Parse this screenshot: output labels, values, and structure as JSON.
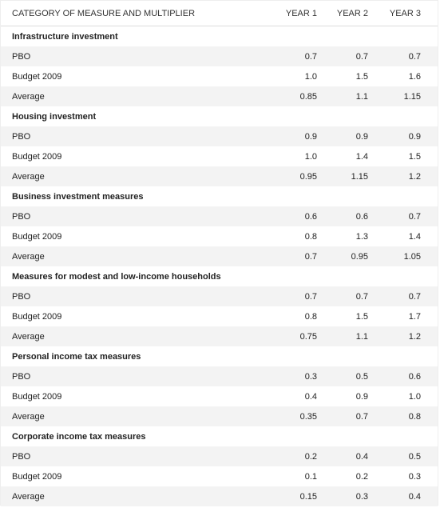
{
  "header": [
    "CATEGORY OF MEASURE AND MULTIPLIER",
    "YEAR 1",
    "YEAR 2",
    "YEAR 3"
  ],
  "groups": [
    {
      "title": "Infrastructure investment",
      "rows": [
        [
          "PBO",
          "0.7",
          "0.7",
          "0.7"
        ],
        [
          "Budget 2009",
          "1.0",
          "1.5",
          "1.6"
        ],
        [
          "Average",
          "0.85",
          "1.1",
          "1.15"
        ]
      ]
    },
    {
      "title": "Housing investment",
      "rows": [
        [
          "PBO",
          "0.9",
          "0.9",
          "0.9"
        ],
        [
          "Budget 2009",
          "1.0",
          "1.4",
          "1.5"
        ],
        [
          "Average",
          "0.95",
          "1.15",
          "1.2"
        ]
      ]
    },
    {
      "title": "Business investment measures",
      "rows": [
        [
          "PBO",
          "0.6",
          "0.6",
          "0.7"
        ],
        [
          "Budget 2009",
          "0.8",
          "1.3",
          "1.4"
        ],
        [
          "Average",
          "0.7",
          "0.95",
          "1.05"
        ]
      ]
    },
    {
      "title": "Measures for modest and low-income households",
      "rows": [
        [
          "PBO",
          "0.7",
          "0.7",
          "0.7"
        ],
        [
          "Budget 2009",
          "0.8",
          "1.5",
          "1.7"
        ],
        [
          "Average",
          "0.75",
          "1.1",
          "1.2"
        ]
      ]
    },
    {
      "title": "Personal income tax measures",
      "rows": [
        [
          "PBO",
          "0.3",
          "0.5",
          "0.6"
        ],
        [
          "Budget 2009",
          "0.4",
          "0.9",
          "1.0"
        ],
        [
          "Average",
          "0.35",
          "0.7",
          "0.8"
        ]
      ]
    },
    {
      "title": "Corporate income tax measures",
      "rows": [
        [
          "PBO",
          "0.2",
          "0.4",
          "0.5"
        ],
        [
          "Budget 2009",
          "0.1",
          "0.2",
          "0.3"
        ],
        [
          "Average",
          "0.15",
          "0.3",
          "0.4"
        ]
      ]
    }
  ]
}
